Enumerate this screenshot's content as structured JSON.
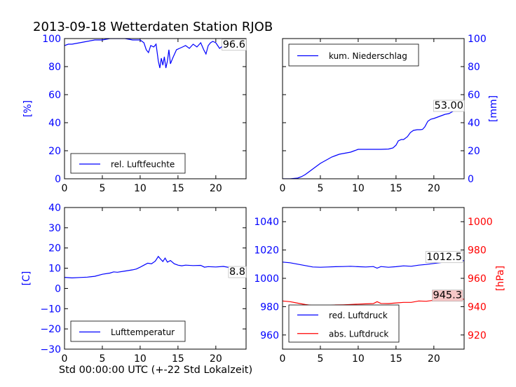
{
  "figure_title": "2013-09-18 Wetterdaten Station RJOB",
  "footer_xlabel": "Std 00:00:00 UTC (+-22 Std Lokalzeit)",
  "colors": {
    "primary": "#0000ff",
    "secondary": "#ff0000",
    "axis": "#000000",
    "label_bg": "#f6c7c7"
  },
  "chart_data": [
    {
      "id": "humidity",
      "type": "line",
      "xlim": [
        0,
        24
      ],
      "ylim": [
        0,
        100
      ],
      "xticks": [
        0,
        5,
        10,
        15,
        20
      ],
      "yticks": [
        0,
        20,
        40,
        60,
        80,
        100
      ],
      "ylabel": "[%]",
      "legend": {
        "placement": "lower-left",
        "entries": [
          "rel. Luftfeuchte"
        ]
      },
      "end_label": "96.6",
      "series": [
        {
          "name": "rel. Luftfeuchte",
          "color": "#0000ff",
          "x": [
            0,
            0.5,
            1,
            2,
            3,
            4,
            5,
            6,
            7,
            8,
            9,
            10,
            10.5,
            10.8,
            11.1,
            11.4,
            11.8,
            12.1,
            12.4,
            12.6,
            12.8,
            13.0,
            13.2,
            13.4,
            13.6,
            13.8,
            14.0,
            14.3,
            14.8,
            15.2,
            15.6,
            16.0,
            16.5,
            17.0,
            17.5,
            18.0,
            18.4,
            18.7,
            19.0,
            19.3,
            19.6,
            20.0,
            20.5,
            21.0,
            21.5,
            22.0,
            22.5,
            23.0,
            23.5,
            24.0
          ],
          "y": [
            95,
            96,
            96,
            97,
            98,
            99,
            99,
            100,
            100,
            100,
            99,
            99,
            97,
            92,
            90,
            95,
            94,
            96,
            84,
            79,
            86,
            81,
            87,
            79,
            84,
            92,
            82,
            86,
            92,
            93,
            94,
            95,
            93,
            96,
            94,
            97,
            92,
            89,
            95,
            97,
            98,
            97,
            93,
            95,
            93,
            94,
            95,
            97,
            96,
            96.6
          ]
        }
      ]
    },
    {
      "id": "precip",
      "type": "line",
      "xlim": [
        0,
        24
      ],
      "ylim": [
        0,
        100
      ],
      "xticks": [
        0,
        5,
        10,
        15,
        20
      ],
      "yticks": [
        0,
        20,
        40,
        60,
        80,
        100
      ],
      "ylabel": "[mm]",
      "legend": {
        "placement": "upper-left",
        "entries": [
          "kum. Niederschlag"
        ]
      },
      "end_label": "53.00",
      "series": [
        {
          "name": "kum. Niederschlag",
          "color": "#0000ff",
          "x": [
            0,
            1,
            2,
            2.5,
            3,
            3.5,
            4,
            4.5,
            5,
            5.5,
            6,
            6.5,
            7,
            7.5,
            8,
            8.5,
            9,
            9.5,
            10,
            10.5,
            11,
            12,
            13,
            14,
            14.6,
            15.0,
            15.3,
            15.7,
            16.0,
            16.5,
            16.9,
            17.3,
            17.8,
            18.2,
            18.5,
            18.8,
            19.2,
            19.6,
            20.0,
            20.5,
            21.0,
            21.5,
            22.0,
            22.5,
            23.0,
            23.5,
            24.0
          ],
          "y": [
            0,
            0,
            0.5,
            1.5,
            3,
            5,
            7,
            9,
            11,
            12.5,
            14,
            15.5,
            16.5,
            17.5,
            18,
            18.5,
            19,
            20,
            21,
            21,
            21,
            21,
            21,
            21.2,
            22,
            24,
            27,
            28,
            28,
            30,
            33,
            34.5,
            35,
            35,
            35.2,
            37,
            41,
            42.5,
            43,
            44,
            45,
            46,
            46.5,
            48,
            50,
            51.5,
            53
          ]
        }
      ]
    },
    {
      "id": "temperature",
      "type": "line",
      "xlim": [
        0,
        24
      ],
      "ylim": [
        -30,
        40
      ],
      "xticks": [
        0,
        5,
        10,
        15,
        20
      ],
      "yticks": [
        -30,
        -20,
        -10,
        0,
        10,
        20,
        30,
        40
      ],
      "ylabel": "[C]",
      "legend": {
        "placement": "lower-left",
        "entries": [
          "Lufttemperatur"
        ]
      },
      "end_label": "8.8",
      "series": [
        {
          "name": "Lufttemperatur",
          "color": "#0000ff",
          "x": [
            0,
            1,
            2,
            3,
            4,
            5,
            6,
            6.5,
            7,
            8,
            9,
            9.5,
            10,
            10.5,
            11,
            11.5,
            12,
            12.4,
            12.7,
            13.0,
            13.3,
            13.6,
            14.0,
            14.5,
            15.0,
            15.5,
            16,
            17,
            18,
            18.5,
            19,
            20,
            21,
            22,
            23,
            24
          ],
          "y": [
            5.5,
            5.2,
            5.4,
            5.6,
            6,
            7,
            7.6,
            8.2,
            8,
            8.6,
            9.2,
            9.6,
            10.5,
            11.5,
            12.5,
            12.2,
            13.5,
            15.8,
            14.5,
            13.3,
            15,
            13,
            13.8,
            12.2,
            11.5,
            11.2,
            11.5,
            11.3,
            11.4,
            10.5,
            10.8,
            10.6,
            10.9,
            10.2,
            9.5,
            8.8
          ]
        }
      ]
    },
    {
      "id": "pressure",
      "type": "line",
      "xlim": [
        0,
        24
      ],
      "ylim": [
        950,
        1050
      ],
      "y2lim": [
        910,
        1010
      ],
      "xticks": [
        0,
        5,
        10,
        15,
        20
      ],
      "yticks": [
        960,
        980,
        1000,
        1020,
        1040
      ],
      "y2ticks": [
        920,
        940,
        960,
        980,
        1000
      ],
      "ylabel": "",
      "y2label": "[hPa]",
      "legend": {
        "placement": "lower-left",
        "entries": [
          "red. Luftdruck",
          "abs. Luftdruck"
        ]
      },
      "end_labels": [
        "1012.5",
        "945.3"
      ],
      "series": [
        {
          "name": "red. Luftdruck",
          "color": "#0000ff",
          "axis": "left",
          "x": [
            0,
            1,
            2,
            3,
            4,
            5,
            6,
            7,
            8,
            9,
            10,
            11,
            12,
            12.5,
            13,
            14,
            15,
            16,
            17,
            18,
            19,
            20,
            21,
            22,
            23,
            24
          ],
          "y": [
            1011.5,
            1011,
            1010,
            1009,
            1008,
            1007.8,
            1008,
            1008.2,
            1008.3,
            1008.5,
            1008.2,
            1008,
            1008.3,
            1007.2,
            1008.3,
            1007.8,
            1008.2,
            1008.8,
            1008.5,
            1009.3,
            1009.8,
            1010.5,
            1011.2,
            1011.8,
            1012.2,
            1012.5
          ]
        },
        {
          "name": "abs. Luftdruck",
          "color": "#ff0000",
          "axis": "right",
          "x": [
            0,
            1,
            2,
            3,
            4,
            5,
            6,
            7,
            8,
            9,
            10,
            11,
            12,
            12.5,
            13,
            14,
            15,
            16,
            17,
            18,
            19,
            20,
            21,
            22,
            23,
            24
          ],
          "y": [
            944,
            943.5,
            942.5,
            941.5,
            940.8,
            940.5,
            940.8,
            941.2,
            941.3,
            941.5,
            941.8,
            942,
            942.2,
            943.5,
            942.3,
            942.2,
            942.6,
            943,
            943,
            944,
            943.8,
            944.5,
            944.8,
            945,
            945.2,
            945.3
          ]
        }
      ]
    }
  ]
}
